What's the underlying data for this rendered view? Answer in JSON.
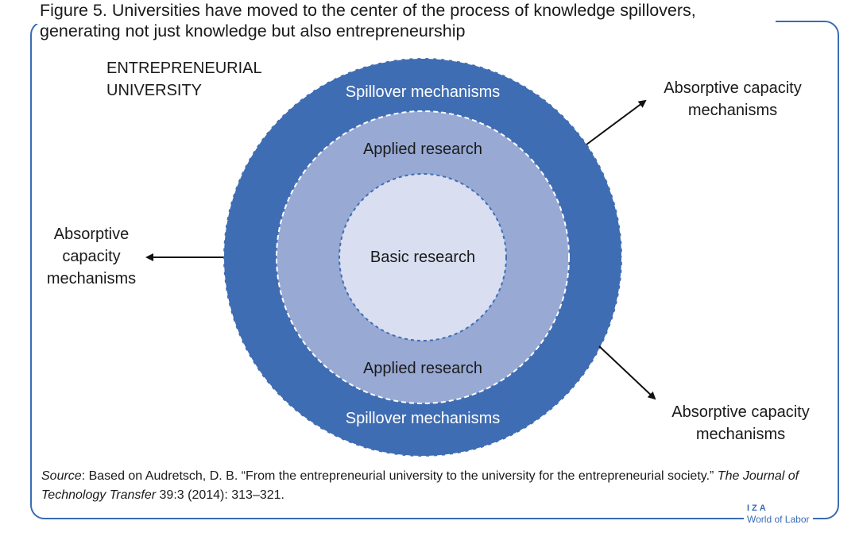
{
  "title": {
    "line1": "Figure 5. Universities have moved to the center of the process of knowledge spillovers,",
    "line2": "generating not just knowledge but also entrepreneurship"
  },
  "diagram": {
    "corner_label": {
      "line1": "ENTREPRENEURIAL",
      "line2": "UNIVERSITY"
    },
    "outer_ring_top": "Spillover mechanisms",
    "outer_ring_bottom": "Spillover mechanisms",
    "middle_ring_top": "Applied research",
    "middle_ring_bottom": "Applied research",
    "core": "Basic research",
    "absorptive_top_right": {
      "line1": "Absorptive capacity",
      "line2": "mechanisms"
    },
    "absorptive_left": {
      "line1": "Absorptive",
      "line2": "capacity",
      "line3": "mechanisms"
    },
    "absorptive_bottom_right": {
      "line1": "Absorptive capacity",
      "line2": "mechanisms"
    },
    "colors": {
      "outer": "#3f6db3",
      "middle": "#98a9d4",
      "inner": "#d9dff0",
      "frame": "#3a6cb4"
    }
  },
  "source": {
    "label": "Source",
    "text_before": ": Based on Audretsch, D. B. “From the entrepreneurial university to the university for the entrepreneurial society.” ",
    "journal": "The Journal of Technology Transfer",
    "text_after": " 39:3 (2014): 313–321."
  },
  "logo": {
    "top": "IZA",
    "bottom": "World of Labor"
  }
}
